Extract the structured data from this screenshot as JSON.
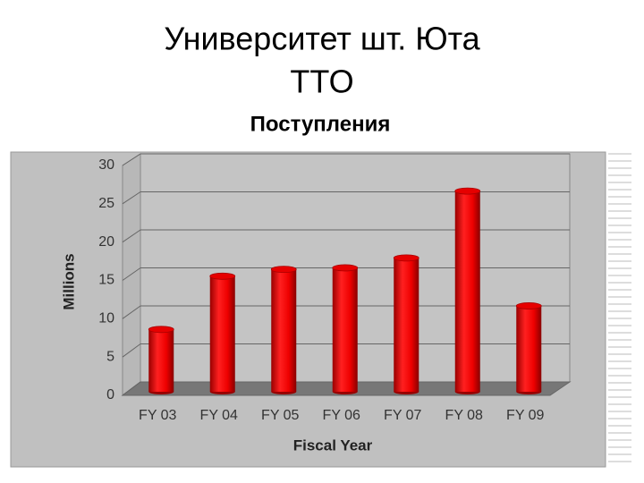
{
  "chart_data": {
    "type": "bar",
    "title": [
      "Университет шт. Юта",
      "TTO"
    ],
    "subtitle": "Поступления",
    "y_label": "Millions",
    "x_label": "Fiscal Year",
    "categories": [
      "FY 03",
      "FY 04",
      "FY 05",
      "FY 06",
      "FY 07",
      "FY 08",
      "FY 09"
    ],
    "values": [
      8.2,
      15.2,
      16.1,
      16.3,
      17.6,
      26.4,
      11.3
    ],
    "color": "#e60000",
    "ylim": [
      0,
      30
    ],
    "yticks": [
      0,
      5,
      10,
      15,
      20,
      25,
      30
    ],
    "grid": true
  }
}
